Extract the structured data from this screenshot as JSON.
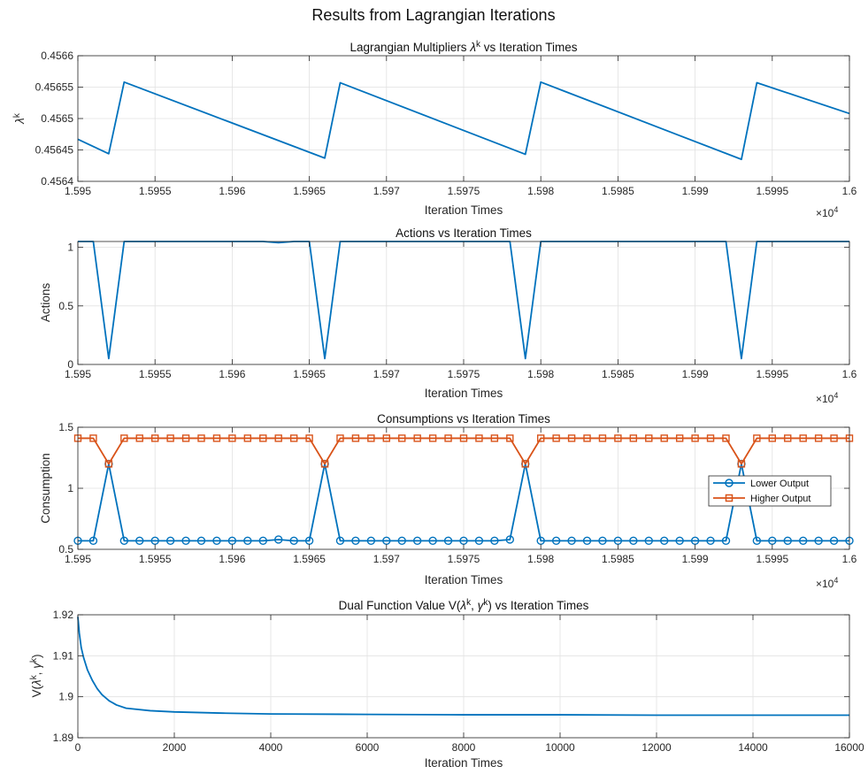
{
  "figure": {
    "title": "Results from Lagrangian Iterations",
    "colors": {
      "blue": "#0072bd",
      "orange": "#d95319"
    }
  },
  "chart_data": [
    {
      "type": "line",
      "title": "Lagrangian Multipliers λ^k vs Iteration Times",
      "title_text": "Lagrangian Multipliers ",
      "title_sym": "λ",
      "title_sup": "k",
      "title_tail": " vs Iteration Times",
      "xlabel": "Iteration Times",
      "ylabel_text": "λ",
      "ylabel_sup": "k",
      "x_multiplier_base": "×10",
      "x_multiplier_exp": "4",
      "xlim": [
        15950,
        16000
      ],
      "ylim": [
        0.4564,
        0.4566
      ],
      "xticks": [
        15950,
        15955,
        15960,
        15965,
        15970,
        15975,
        15980,
        15985,
        15990,
        15995,
        16000
      ],
      "xticklabels": [
        "1.595",
        "1.5955",
        "1.596",
        "1.5965",
        "1.597",
        "1.5975",
        "1.598",
        "1.5985",
        "1.599",
        "1.5995",
        "1.6"
      ],
      "yticks": [
        0.4564,
        0.45645,
        0.4565,
        0.45655,
        0.4566
      ],
      "yticklabels": [
        "0.4564",
        "0.45645",
        "0.4565",
        "0.45655",
        "0.4566"
      ],
      "grid": true,
      "series": [
        {
          "color": "#0072bd",
          "x": [
            15950,
            15952,
            15953,
            15966,
            15967,
            15979,
            15980,
            15993,
            15994,
            16000
          ],
          "y": [
            0.456467,
            0.456444,
            0.456558,
            0.456437,
            0.456557,
            0.456443,
            0.456558,
            0.456435,
            0.456557,
            0.456508
          ]
        }
      ]
    },
    {
      "type": "line",
      "title": "Actions vs Iteration Times",
      "xlabel": "Iteration Times",
      "ylabel": "Actions",
      "x_multiplier_base": "×10",
      "x_multiplier_exp": "4",
      "xlim": [
        15950,
        16000
      ],
      "ylim": [
        0,
        1.05
      ],
      "xticks": [
        15950,
        15955,
        15960,
        15965,
        15970,
        15975,
        15980,
        15985,
        15990,
        15995,
        16000
      ],
      "xticklabels": [
        "1.595",
        "1.5955",
        "1.596",
        "1.5965",
        "1.597",
        "1.5975",
        "1.598",
        "1.5985",
        "1.599",
        "1.5995",
        "1.6"
      ],
      "yticks": [
        0,
        0.5,
        1
      ],
      "yticklabels": [
        "0",
        "0.5",
        "1"
      ],
      "grid": true,
      "series": [
        {
          "color": "#0072bd",
          "x": [
            15950,
            15951,
            15952,
            15953,
            15954,
            15955,
            15956,
            15957,
            15958,
            15959,
            15960,
            15961,
            15962,
            15963,
            15964,
            15965,
            15966,
            15967,
            15968,
            15969,
            15970,
            15971,
            15972,
            15973,
            15974,
            15975,
            15976,
            15977,
            15978,
            15979,
            15980,
            15981,
            15982,
            15983,
            15984,
            15985,
            15986,
            15987,
            15988,
            15989,
            15990,
            15991,
            15992,
            15993,
            15994,
            15995,
            15996,
            15997,
            15998,
            15999,
            16000
          ],
          "y": [
            1.05,
            1.05,
            0.05,
            1.05,
            1.05,
            1.05,
            1.05,
            1.05,
            1.05,
            1.05,
            1.05,
            1.05,
            1.05,
            1.04,
            1.05,
            1.05,
            0.05,
            1.05,
            1.05,
            1.05,
            1.05,
            1.05,
            1.05,
            1.05,
            1.05,
            1.05,
            1.05,
            1.05,
            1.05,
            0.05,
            1.05,
            1.05,
            1.05,
            1.05,
            1.05,
            1.05,
            1.05,
            1.05,
            1.05,
            1.05,
            1.05,
            1.05,
            1.05,
            0.05,
            1.05,
            1.05,
            1.05,
            1.05,
            1.05,
            1.05,
            1.05
          ]
        }
      ]
    },
    {
      "type": "line",
      "title": "Consumptions vs Iteration Times",
      "xlabel": "Iteration Times",
      "ylabel": "Consumption",
      "x_multiplier_base": "×10",
      "x_multiplier_exp": "4",
      "xlim": [
        15950,
        16000
      ],
      "ylim": [
        0.5,
        1.5
      ],
      "xticks": [
        15950,
        15955,
        15960,
        15965,
        15970,
        15975,
        15980,
        15985,
        15990,
        15995,
        16000
      ],
      "xticklabels": [
        "1.595",
        "1.5955",
        "1.596",
        "1.5965",
        "1.597",
        "1.5975",
        "1.598",
        "1.5985",
        "1.599",
        "1.5995",
        "1.6"
      ],
      "yticks": [
        0.5,
        1,
        1.5
      ],
      "yticklabels": [
        "0.5",
        "1",
        "1.5"
      ],
      "grid": true,
      "legend_position": "east",
      "series": [
        {
          "name": "Lower Output",
          "color": "#0072bd",
          "marker": "circle",
          "x": [
            15950,
            15951,
            15952,
            15953,
            15954,
            15955,
            15956,
            15957,
            15958,
            15959,
            15960,
            15961,
            15962,
            15963,
            15964,
            15965,
            15966,
            15967,
            15968,
            15969,
            15970,
            15971,
            15972,
            15973,
            15974,
            15975,
            15976,
            15977,
            15978,
            15979,
            15980,
            15981,
            15982,
            15983,
            15984,
            15985,
            15986,
            15987,
            15988,
            15989,
            15990,
            15991,
            15992,
            15993,
            15994,
            15995,
            15996,
            15997,
            15998,
            15999,
            16000
          ],
          "y": [
            0.57,
            0.57,
            1.2,
            0.57,
            0.57,
            0.57,
            0.57,
            0.57,
            0.57,
            0.57,
            0.57,
            0.57,
            0.57,
            0.58,
            0.57,
            0.57,
            1.2,
            0.57,
            0.57,
            0.57,
            0.57,
            0.57,
            0.57,
            0.57,
            0.57,
            0.57,
            0.57,
            0.57,
            0.58,
            1.2,
            0.57,
            0.57,
            0.57,
            0.57,
            0.57,
            0.57,
            0.57,
            0.57,
            0.57,
            0.57,
            0.57,
            0.57,
            0.57,
            1.2,
            0.57,
            0.57,
            0.57,
            0.57,
            0.57,
            0.57,
            0.57
          ]
        },
        {
          "name": "Higher Output",
          "color": "#d95319",
          "marker": "square",
          "x": [
            15950,
            15951,
            15952,
            15953,
            15954,
            15955,
            15956,
            15957,
            15958,
            15959,
            15960,
            15961,
            15962,
            15963,
            15964,
            15965,
            15966,
            15967,
            15968,
            15969,
            15970,
            15971,
            15972,
            15973,
            15974,
            15975,
            15976,
            15977,
            15978,
            15979,
            15980,
            15981,
            15982,
            15983,
            15984,
            15985,
            15986,
            15987,
            15988,
            15989,
            15990,
            15991,
            15992,
            15993,
            15994,
            15995,
            15996,
            15997,
            15998,
            15999,
            16000
          ],
          "y": [
            1.41,
            1.41,
            1.2,
            1.41,
            1.41,
            1.41,
            1.41,
            1.41,
            1.41,
            1.41,
            1.41,
            1.41,
            1.41,
            1.41,
            1.41,
            1.41,
            1.2,
            1.41,
            1.41,
            1.41,
            1.41,
            1.41,
            1.41,
            1.41,
            1.41,
            1.41,
            1.41,
            1.41,
            1.41,
            1.2,
            1.41,
            1.41,
            1.41,
            1.41,
            1.41,
            1.41,
            1.41,
            1.41,
            1.41,
            1.41,
            1.41,
            1.41,
            1.41,
            1.2,
            1.41,
            1.41,
            1.41,
            1.41,
            1.41,
            1.41,
            1.41
          ]
        }
      ]
    },
    {
      "type": "line",
      "title": "Dual Function Value V(λ^k, γ^k) vs Iteration Times",
      "title_text": "Dual Function Value V(",
      "title_sym1": "λ",
      "title_sup1": "k",
      "title_sep": ", ",
      "title_sym2": "γ",
      "title_sup2": "k",
      "title_tail": ") vs Iteration Times",
      "xlabel": "Iteration Times",
      "ylabel_text": "V(",
      "ylabel_sym1": "λ",
      "ylabel_sup1": "k",
      "ylabel_sep": ", ",
      "ylabel_sym2": "γ",
      "ylabel_sup2": "k",
      "ylabel_tail": ")",
      "xlim": [
        0,
        16000
      ],
      "ylim": [
        1.89,
        1.92
      ],
      "xticks": [
        0,
        2000,
        4000,
        6000,
        8000,
        10000,
        12000,
        14000,
        16000
      ],
      "xticklabels": [
        "0",
        "2000",
        "4000",
        "6000",
        "8000",
        "10000",
        "12000",
        "14000",
        "16000"
      ],
      "yticks": [
        1.89,
        1.9,
        1.91,
        1.92
      ],
      "yticklabels": [
        "1.89",
        "1.9",
        "1.91",
        "1.92"
      ],
      "grid": true,
      "series": [
        {
          "color": "#0072bd",
          "x": [
            0,
            30,
            70,
            120,
            200,
            300,
            400,
            500,
            650,
            800,
            1000,
            1500,
            2000,
            3000,
            4000,
            6000,
            8000,
            10000,
            12000,
            14000,
            16000
          ],
          "y": [
            1.9195,
            1.9155,
            1.912,
            1.9095,
            1.9065,
            1.904,
            1.902,
            1.9005,
            1.899,
            1.898,
            1.8972,
            1.8966,
            1.8963,
            1.896,
            1.8958,
            1.8957,
            1.8956,
            1.8956,
            1.8955,
            1.8955,
            1.8955
          ]
        }
      ]
    }
  ]
}
